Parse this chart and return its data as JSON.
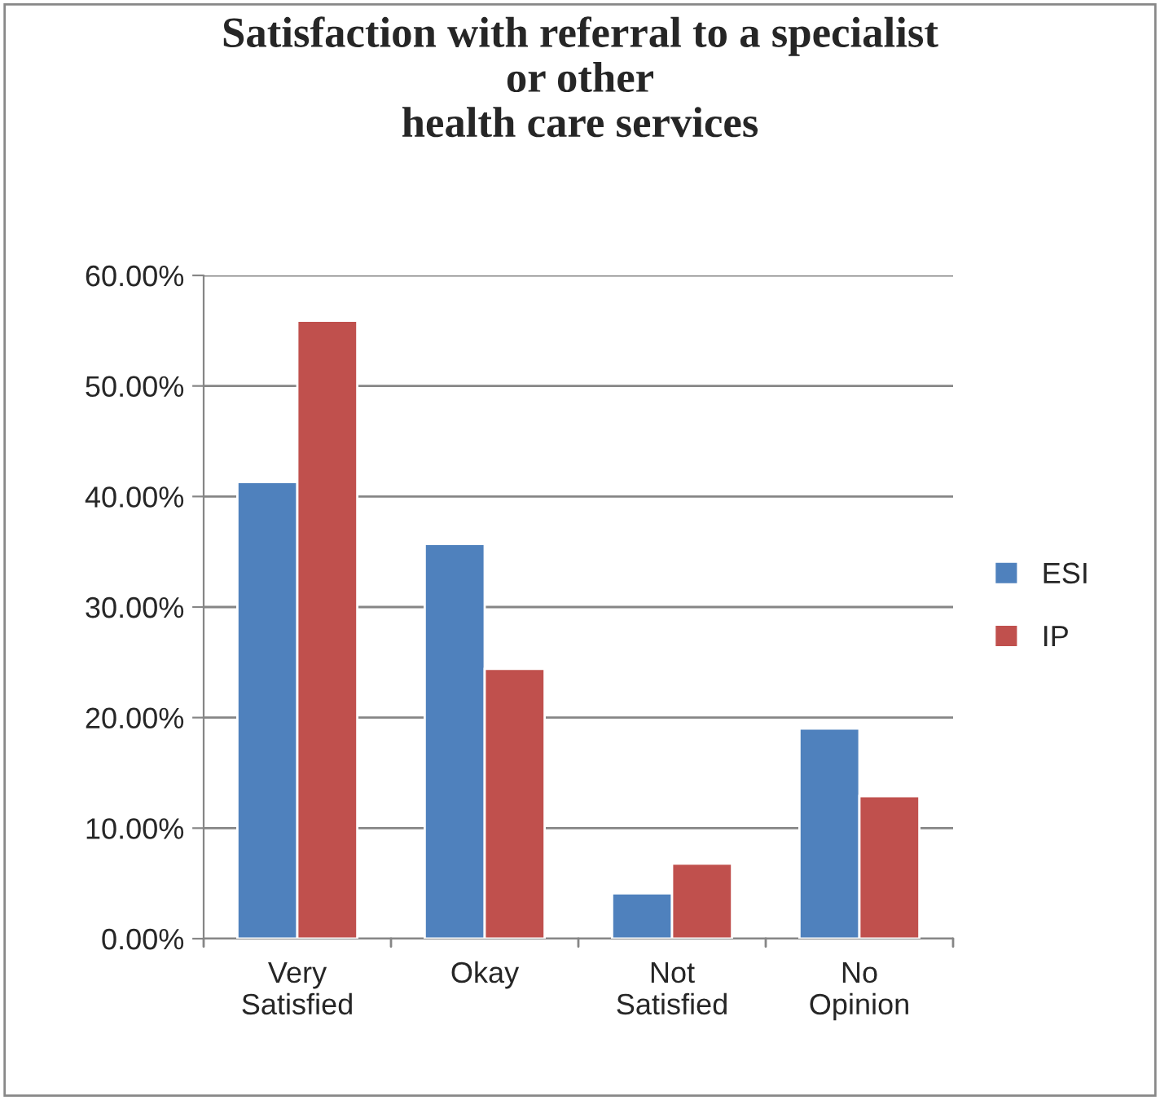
{
  "chart_data": {
    "type": "bar",
    "title": "Satisfaction with referral to a specialist\nor other\nhealth care services",
    "categories": [
      "Very\nSatisfied",
      "Okay",
      "Not\nSatisfied",
      "No\nOpinion"
    ],
    "series": [
      {
        "name": "ESI",
        "color": "#4f81bd",
        "values": [
          41.3,
          35.7,
          4.1,
          19.0
        ]
      },
      {
        "name": "IP",
        "color": "#c0504d",
        "values": [
          55.9,
          24.4,
          6.8,
          12.9
        ]
      }
    ],
    "ylim": [
      0,
      60
    ],
    "yticks": [
      {
        "value": 0,
        "label": "0.00%"
      },
      {
        "value": 10,
        "label": "10.00%"
      },
      {
        "value": 20,
        "label": "20.00%"
      },
      {
        "value": 30,
        "label": "30.00%"
      },
      {
        "value": 40,
        "label": "40.00%"
      },
      {
        "value": 50,
        "label": "50.00%"
      },
      {
        "value": 60,
        "label": "60.00%"
      }
    ],
    "grid": "y",
    "legend": "right"
  }
}
